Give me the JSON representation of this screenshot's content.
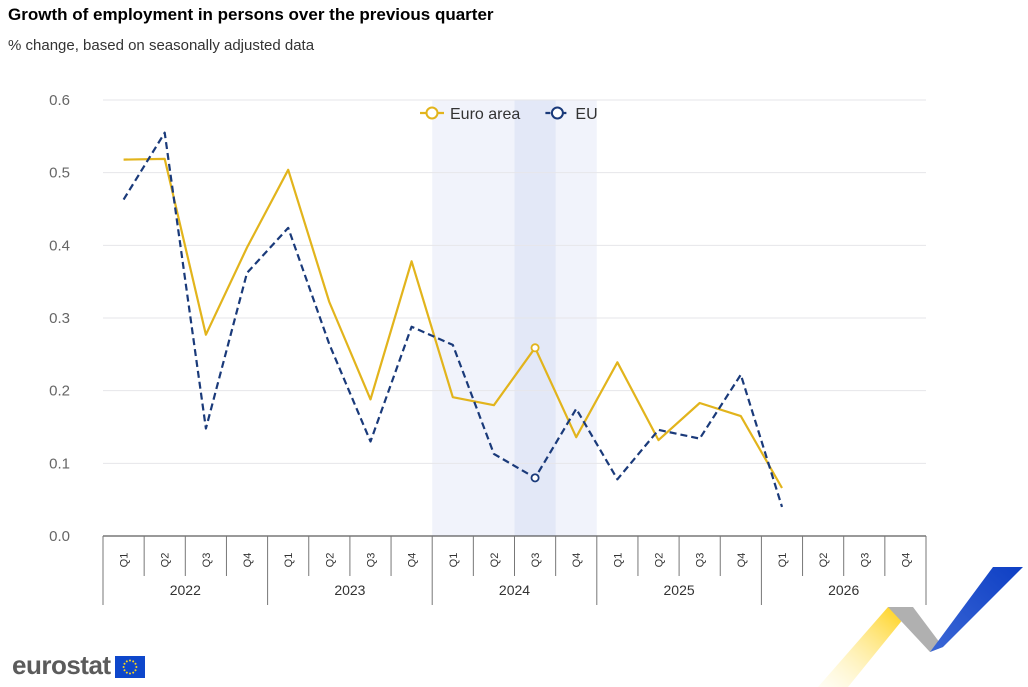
{
  "header": {
    "title": "Growth of employment in persons over the previous quarter",
    "subtitle": "% change, based on seasonally adjusted data"
  },
  "logo": {
    "text": "eurostat"
  },
  "colors": {
    "euro_area": "#e2b41c",
    "eu": "#1a3a7a",
    "highlight": "#e8ecf8",
    "grid": "#e6e6ea"
  },
  "chart_data": {
    "type": "line",
    "title": "Growth of employment in persons over the previous quarter",
    "subtitle": "% change, based on seasonally adjusted data",
    "x_quarters": [
      "Q1",
      "Q2",
      "Q3",
      "Q4",
      "Q1",
      "Q2",
      "Q3",
      "Q4",
      "Q1",
      "Q2",
      "Q3",
      "Q4",
      "Q1",
      "Q2",
      "Q3",
      "Q4",
      "Q1",
      "Q2",
      "Q3",
      "Q4"
    ],
    "x_years": [
      "2022",
      "2023",
      "2024",
      "2025",
      "2026"
    ],
    "ylim": [
      0,
      0.6
    ],
    "yticks": [
      "0.0",
      "0.1",
      "0.2",
      "0.3",
      "0.4",
      "0.5",
      "0.6"
    ],
    "grid": true,
    "legend_position": "top-center",
    "highlight_year": "2024",
    "highlight_quarter_index": 10,
    "series": [
      {
        "name": "Euro area",
        "style": "solid",
        "values": [
          0.518,
          0.519,
          0.277,
          0.397,
          0.504,
          0.322,
          0.188,
          0.378,
          0.191,
          0.18,
          0.259,
          0.136,
          0.239,
          0.132,
          0.183,
          0.165,
          0.066,
          null,
          null,
          null
        ]
      },
      {
        "name": "EU",
        "style": "dashed",
        "values": [
          0.463,
          0.555,
          0.148,
          0.362,
          0.424,
          0.264,
          0.13,
          0.288,
          0.263,
          0.113,
          0.08,
          0.175,
          0.078,
          0.146,
          0.134,
          0.222,
          0.04,
          null,
          null,
          null
        ]
      }
    ]
  }
}
